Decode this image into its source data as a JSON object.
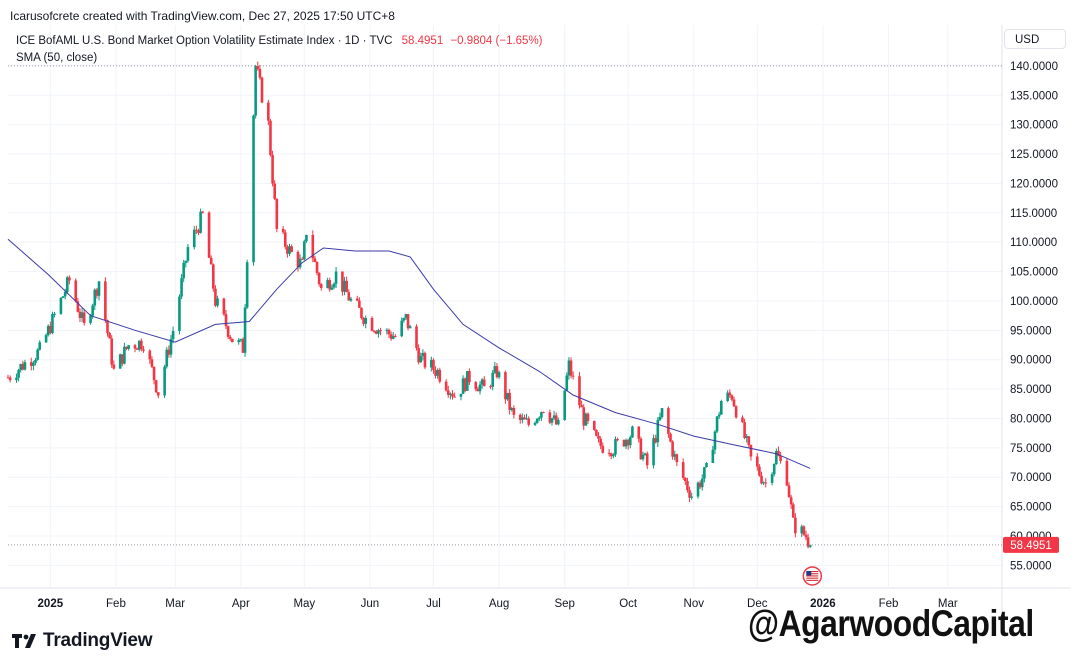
{
  "attribution": "Icarusofcrete created with TradingView.com, Dec 27, 2025 17:50 UTC+8",
  "legend": {
    "symbol": "ICE BofAML U.S. Bond Market Option Volatility Estimate Index · 1D · TVC",
    "price": "58.4951",
    "change": "−0.9804 (−1.65%)",
    "indicator": "SMA (50, close)"
  },
  "currency": "USD",
  "brand": "TradingView",
  "watermark": "@AgarwoodCapital",
  "colors": {
    "up": "#089981",
    "down": "#f23645",
    "sma": "#3b3aa6",
    "grid": "#f0f3fa",
    "text": "#131722"
  },
  "icons": {
    "events_flag": "us-flag-icon",
    "logo": "tradingview-logo-icon"
  },
  "chart_data": {
    "type": "candlestick",
    "last_price": 58.4951,
    "y_axis": {
      "range": [
        52,
        141
      ],
      "ticks": [
        55,
        60,
        65,
        70,
        75,
        80,
        85,
        90,
        95,
        100,
        105,
        110,
        115,
        120,
        125,
        130,
        135,
        140
      ],
      "labels": [
        "55.0000",
        "60.0000",
        "65.0000",
        "70.0000",
        "75.0000",
        "80.0000",
        "85.0000",
        "90.0000",
        "95.0000",
        "100.0000",
        "105.0000",
        "110.0000",
        "115.0000",
        "120.0000",
        "125.0000",
        "130.0000",
        "135.0000",
        "140.0000"
      ]
    },
    "x_axis": {
      "labels": [
        {
          "label": "2025",
          "date": "2025-01-01"
        },
        {
          "label": "Feb",
          "date": "2025-02-01"
        },
        {
          "label": "Mar",
          "date": "2025-03-01"
        },
        {
          "label": "Apr",
          "date": "2025-04-01"
        },
        {
          "label": "May",
          "date": "2025-05-01"
        },
        {
          "label": "Jun",
          "date": "2025-06-01"
        },
        {
          "label": "Jul",
          "date": "2025-07-01"
        },
        {
          "label": "Aug",
          "date": "2025-08-01"
        },
        {
          "label": "Sep",
          "date": "2025-09-01"
        },
        {
          "label": "Oct",
          "date": "2025-10-01"
        },
        {
          "label": "Nov",
          "date": "2025-11-01"
        },
        {
          "label": "Dec",
          "date": "2025-12-01"
        },
        {
          "label": "2026",
          "date": "2026-01-01"
        },
        {
          "label": "Feb",
          "date": "2026-02-01"
        },
        {
          "label": "Mar",
          "date": "2026-03-01"
        }
      ]
    },
    "series": [
      {
        "name": "ICE BofAML U.S. Bond Market Option Volatility Estimate Index",
        "points": [
          [
            "2024-12-12",
            87.0
          ],
          [
            "2024-12-27",
            91.5
          ],
          [
            "2025-01-10",
            103.5
          ],
          [
            "2025-01-17",
            95.5
          ],
          [
            "2025-01-24",
            103.5
          ],
          [
            "2025-01-31",
            88.0
          ],
          [
            "2025-02-07",
            92.5
          ],
          [
            "2025-02-14",
            93.0
          ],
          [
            "2025-02-21",
            84.5
          ],
          [
            "2025-02-28",
            95.0
          ],
          [
            "2025-03-07",
            109.0
          ],
          [
            "2025-03-14",
            114.5
          ],
          [
            "2025-03-20",
            100.0
          ],
          [
            "2025-03-28",
            93.5
          ],
          [
            "2025-04-02",
            92.0
          ],
          [
            "2025-04-08",
            140.0
          ],
          [
            "2025-04-14",
            130.0
          ],
          [
            "2025-04-18",
            112.0
          ],
          [
            "2025-04-25",
            108.0
          ],
          [
            "2025-04-30",
            106.0
          ],
          [
            "2025-05-02",
            112.0
          ],
          [
            "2025-05-09",
            102.0
          ],
          [
            "2025-05-16",
            104.5
          ],
          [
            "2025-05-23",
            100.0
          ],
          [
            "2025-05-30",
            97.0
          ],
          [
            "2025-06-06",
            95.0
          ],
          [
            "2025-06-13",
            94.0
          ],
          [
            "2025-06-18",
            97.0
          ],
          [
            "2025-06-25",
            90.0
          ],
          [
            "2025-07-03",
            88.0
          ],
          [
            "2025-07-11",
            84.0
          ],
          [
            "2025-07-18",
            87.0
          ],
          [
            "2025-07-25",
            85.0
          ],
          [
            "2025-07-31",
            88.0
          ],
          [
            "2025-08-08",
            80.0
          ],
          [
            "2025-08-15",
            79.0
          ],
          [
            "2025-08-22",
            82.0
          ],
          [
            "2025-08-29",
            78.5
          ],
          [
            "2025-09-03",
            89.0
          ],
          [
            "2025-09-10",
            80.0
          ],
          [
            "2025-09-17",
            75.5
          ],
          [
            "2025-09-24",
            75.0
          ],
          [
            "2025-10-03",
            77.5
          ],
          [
            "2025-10-10",
            72.0
          ],
          [
            "2025-10-17",
            81.0
          ],
          [
            "2025-10-24",
            72.0
          ],
          [
            "2025-10-31",
            67.0
          ],
          [
            "2025-11-07",
            71.0
          ],
          [
            "2025-11-14",
            83.0
          ],
          [
            "2025-11-19",
            84.0
          ],
          [
            "2025-11-24",
            78.0
          ],
          [
            "2025-11-28",
            73.0
          ],
          [
            "2025-12-05",
            69.0
          ],
          [
            "2025-12-10",
            74.0
          ],
          [
            "2025-12-15",
            70.0
          ],
          [
            "2025-12-18",
            62.0
          ],
          [
            "2025-12-24",
            60.0
          ],
          [
            "2025-12-26",
            58.4951
          ]
        ]
      },
      {
        "name": "SMA (50, close)",
        "points": [
          [
            "2024-12-12",
            110.5
          ],
          [
            "2024-12-31",
            104.5
          ],
          [
            "2025-01-20",
            97.5
          ],
          [
            "2025-02-10",
            95.0
          ],
          [
            "2025-03-01",
            93.0
          ],
          [
            "2025-03-20",
            96.0
          ],
          [
            "2025-04-05",
            96.5
          ],
          [
            "2025-04-18",
            102.0
          ],
          [
            "2025-04-30",
            106.5
          ],
          [
            "2025-05-10",
            109.0
          ],
          [
            "2025-05-25",
            108.5
          ],
          [
            "2025-06-10",
            108.5
          ],
          [
            "2025-06-20",
            107.5
          ],
          [
            "2025-07-01",
            102.0
          ],
          [
            "2025-07-15",
            96.0
          ],
          [
            "2025-08-01",
            92.0
          ],
          [
            "2025-08-20",
            88.0
          ],
          [
            "2025-09-05",
            84.0
          ],
          [
            "2025-09-25",
            81.0
          ],
          [
            "2025-10-15",
            79.0
          ],
          [
            "2025-11-01",
            77.0
          ],
          [
            "2025-11-20",
            75.5
          ],
          [
            "2025-12-10",
            74.0
          ],
          [
            "2025-12-26",
            71.5
          ]
        ]
      }
    ],
    "grid": true,
    "legend_position": "top-left"
  }
}
